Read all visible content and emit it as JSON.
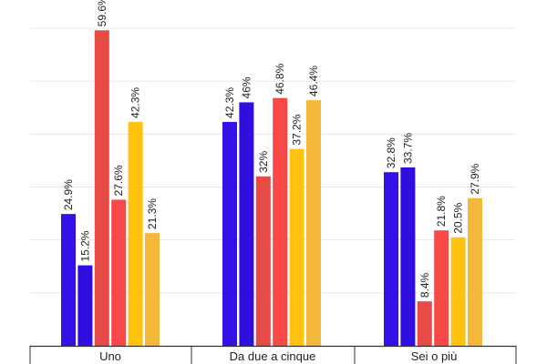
{
  "chart_data": {
    "type": "bar",
    "title": "",
    "xlabel": "",
    "ylabel": "",
    "categories": [
      "Uno",
      "Da due a cinque",
      "Sei o più"
    ],
    "ylim": [
      0,
      60
    ],
    "grid": true,
    "value_suffix": "%",
    "series": [
      {
        "color": "#3411e6",
        "values": [
          24.9,
          42.3,
          32.8
        ]
      },
      {
        "color": "#2f0fe0",
        "values": [
          15.2,
          46,
          33.7
        ]
      },
      {
        "color": "#e84a45",
        "values": [
          59.6,
          32,
          8.4
        ]
      },
      {
        "color": "#f94848",
        "values": [
          27.6,
          46.8,
          21.8
        ]
      },
      {
        "color": "#ffc20f",
        "values": [
          42.3,
          37.2,
          20.5
        ]
      },
      {
        "color": "#f4b93a",
        "values": [
          21.3,
          46.4,
          27.9
        ]
      }
    ]
  }
}
